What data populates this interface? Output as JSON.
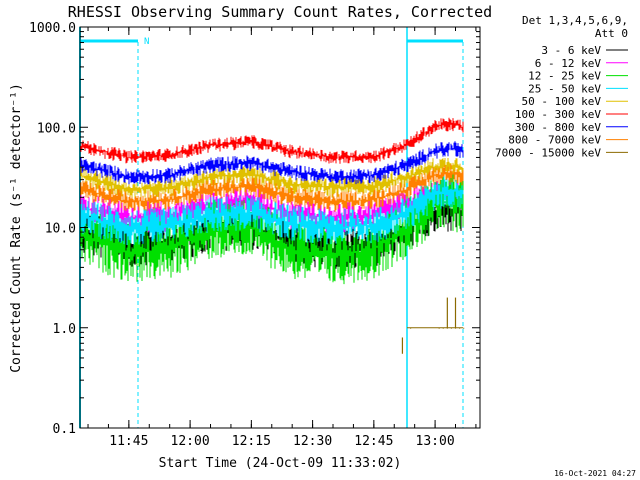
{
  "chart_data": {
    "type": "line",
    "title": "RHESSI Observing Summary Count Rates, Corrected",
    "xlabel": "Start Time (24-Oct-09 11:33:02)",
    "ylabel": "Corrected Count Rate (s⁻¹ detector⁻¹)",
    "yscale": "log",
    "ylim": [
      0.1,
      1000.0
    ],
    "xlim": [
      "11:33",
      "13:11"
    ],
    "yticks": [
      "0.1",
      "1.0",
      "10.0",
      "100.0",
      "1000.0"
    ],
    "xticks": [
      "11:45",
      "12:00",
      "12:15",
      "12:30",
      "12:45",
      "13:00"
    ],
    "legend_header": [
      "Det 1,3,4,5,6,9,",
      "Att 0"
    ],
    "legend_position": "right",
    "footer": "16-Oct-2021 04:27",
    "flag_label": "N",
    "series": [
      {
        "name": "3 - 6 keV",
        "color": "#000000",
        "x": [
          "11:33",
          "11:45",
          "11:55",
          "12:05",
          "12:15",
          "12:25",
          "12:35",
          "12:45",
          "12:53",
          "13:00",
          "13:05",
          "13:10"
        ],
        "y": [
          9,
          6.5,
          7,
          9.5,
          10,
          7,
          6,
          6.5,
          10,
          14,
          15,
          12
        ]
      },
      {
        "name": "6 - 12 keV",
        "color": "#ff00ff",
        "x": [
          "11:33",
          "11:45",
          "11:55",
          "12:05",
          "12:15",
          "12:25",
          "12:35",
          "12:45",
          "12:53",
          "13:00",
          "13:05",
          "13:10"
        ],
        "y": [
          16,
          12.5,
          13,
          17,
          18,
          13.5,
          12.5,
          13,
          17,
          22,
          22,
          17
        ]
      },
      {
        "name": "12 - 25 keV",
        "color": "#00e000",
        "x": [
          "11:33",
          "11:45",
          "11:55",
          "12:05",
          "12:15",
          "12:25",
          "12:35",
          "12:45",
          "12:53",
          "13:00",
          "13:05",
          "13:10"
        ],
        "y": [
          8.5,
          5.5,
          6,
          9.5,
          10,
          6,
          5.2,
          6,
          10,
          17,
          18,
          14
        ]
      },
      {
        "name": "25 - 50 keV",
        "color": "#00e0ff",
        "x": [
          "11:33",
          "11:45",
          "11:55",
          "12:05",
          "12:15",
          "12:25",
          "12:35",
          "12:45",
          "12:53",
          "13:00",
          "13:05",
          "13:10"
        ],
        "y": [
          13,
          10,
          10.5,
          13.5,
          14,
          11,
          10,
          10.5,
          13.5,
          22,
          24,
          19
        ]
      },
      {
        "name": "50 - 100 keV",
        "color": "#e0c000",
        "x": [
          "11:33",
          "11:45",
          "11:55",
          "12:05",
          "12:15",
          "12:25",
          "12:35",
          "12:45",
          "12:53",
          "13:00",
          "13:05",
          "13:10"
        ],
        "y": [
          33,
          24,
          25,
          32,
          34,
          27,
          25,
          26,
          32,
          40,
          42,
          33
        ]
      },
      {
        "name": "100 - 300 keV",
        "color": "#ff0000",
        "x": [
          "11:33",
          "11:45",
          "11:55",
          "12:05",
          "12:15",
          "12:25",
          "12:35",
          "12:45",
          "12:53",
          "13:00",
          "13:05",
          "13:10"
        ],
        "y": [
          65,
          50,
          53,
          66,
          72,
          57,
          50,
          51,
          66,
          103,
          108,
          85
        ]
      },
      {
        "name": "300 - 800 keV",
        "color": "#0000ff",
        "x": [
          "11:33",
          "11:45",
          "11:55",
          "12:05",
          "12:15",
          "12:25",
          "12:35",
          "12:45",
          "12:53",
          "13:00",
          "13:05",
          "13:10"
        ],
        "y": [
          42,
          32,
          33,
          42,
          44,
          36,
          32,
          33,
          42,
          58,
          62,
          50
        ]
      },
      {
        "name": "800 - 7000 keV",
        "color": "#ff8000",
        "x": [
          "11:33",
          "11:45",
          "11:55",
          "12:05",
          "12:15",
          "12:25",
          "12:35",
          "12:45",
          "12:53",
          "13:00",
          "13:05",
          "13:10"
        ],
        "y": [
          24,
          18,
          19,
          24,
          26,
          20,
          18,
          19,
          24,
          33,
          35,
          28
        ]
      },
      {
        "name": "7000 - 15000 keV",
        "color": "#8b6a00",
        "x": [
          "12:52",
          "12:54",
          "13:01",
          "13:02",
          "13:03",
          "13:04",
          "13:05",
          "13:06",
          "13:07"
        ],
        "y": [
          0.8,
          1.0,
          1.0,
          1.0,
          2.0,
          1.0,
          2.0,
          1.0,
          1.0
        ]
      }
    ]
  }
}
